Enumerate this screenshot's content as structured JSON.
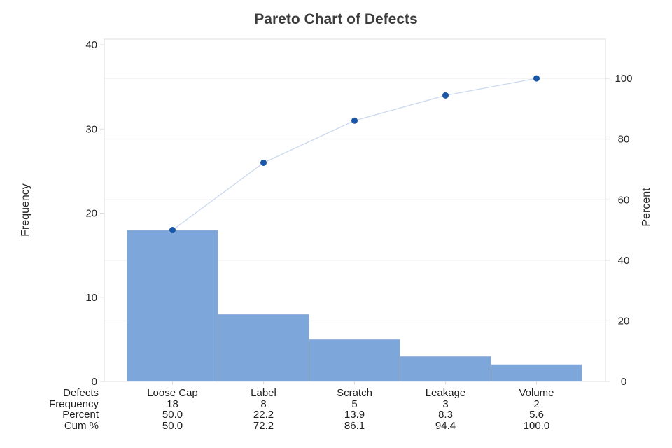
{
  "title": "Pareto Chart of Defects",
  "left_axis": {
    "label": "Frequency",
    "ticks": [
      0,
      10,
      20,
      30,
      40
    ],
    "range": [
      0,
      40
    ]
  },
  "right_axis": {
    "label": "Percent",
    "ticks": [
      0,
      20,
      40,
      60,
      80,
      100
    ],
    "range": [
      0,
      100
    ]
  },
  "chart_data": {
    "type": "pareto",
    "title": "Pareto Chart of Defects",
    "categories": [
      "Loose Cap",
      "Label",
      "Scratch",
      "Leakage",
      "Volume"
    ],
    "series": [
      {
        "name": "Frequency",
        "type": "bar",
        "axis": "left",
        "values": [
          18,
          8,
          5,
          3,
          2
        ]
      },
      {
        "name": "Cum %",
        "type": "line",
        "axis": "right",
        "values": [
          50.0,
          72.2,
          86.1,
          94.4,
          100.0
        ]
      }
    ],
    "percent_of_total": [
      50.0,
      22.2,
      13.9,
      8.3,
      5.6
    ],
    "total": 36,
    "xlabel": "Defects",
    "ylabel_left": "Frequency",
    "ylabel_right": "Percent",
    "ylim_left": [
      0,
      40
    ],
    "ylim_right": [
      0,
      100
    ],
    "grid": "horizontal gridlines at right-axis (percent) ticks",
    "legend": "none"
  },
  "table": {
    "rows": [
      {
        "label": "Defects",
        "values": [
          "Loose Cap",
          "Label",
          "Scratch",
          "Leakage",
          "Volume"
        ]
      },
      {
        "label": "Frequency",
        "values": [
          "18",
          "8",
          "5",
          "3",
          "2"
        ]
      },
      {
        "label": "Percent",
        "values": [
          "50.0",
          "22.2",
          "13.9",
          "8.3",
          "5.6"
        ]
      },
      {
        "label": "Cum %",
        "values": [
          "50.0",
          "72.2",
          "86.1",
          "94.4",
          "100.0"
        ]
      }
    ]
  },
  "colors": {
    "background": "#ffffff",
    "bar_fill": "#7da7db",
    "bar_border": "#c6d2e6",
    "cumulative_line": "#ccd9ee",
    "marker": "#1b57a8",
    "axis_line": "#dcdcdc",
    "gridline": "#ededed",
    "tick_text": "#262626",
    "table_text": "#1f1f1f",
    "title_text": "#3d3d3d"
  }
}
